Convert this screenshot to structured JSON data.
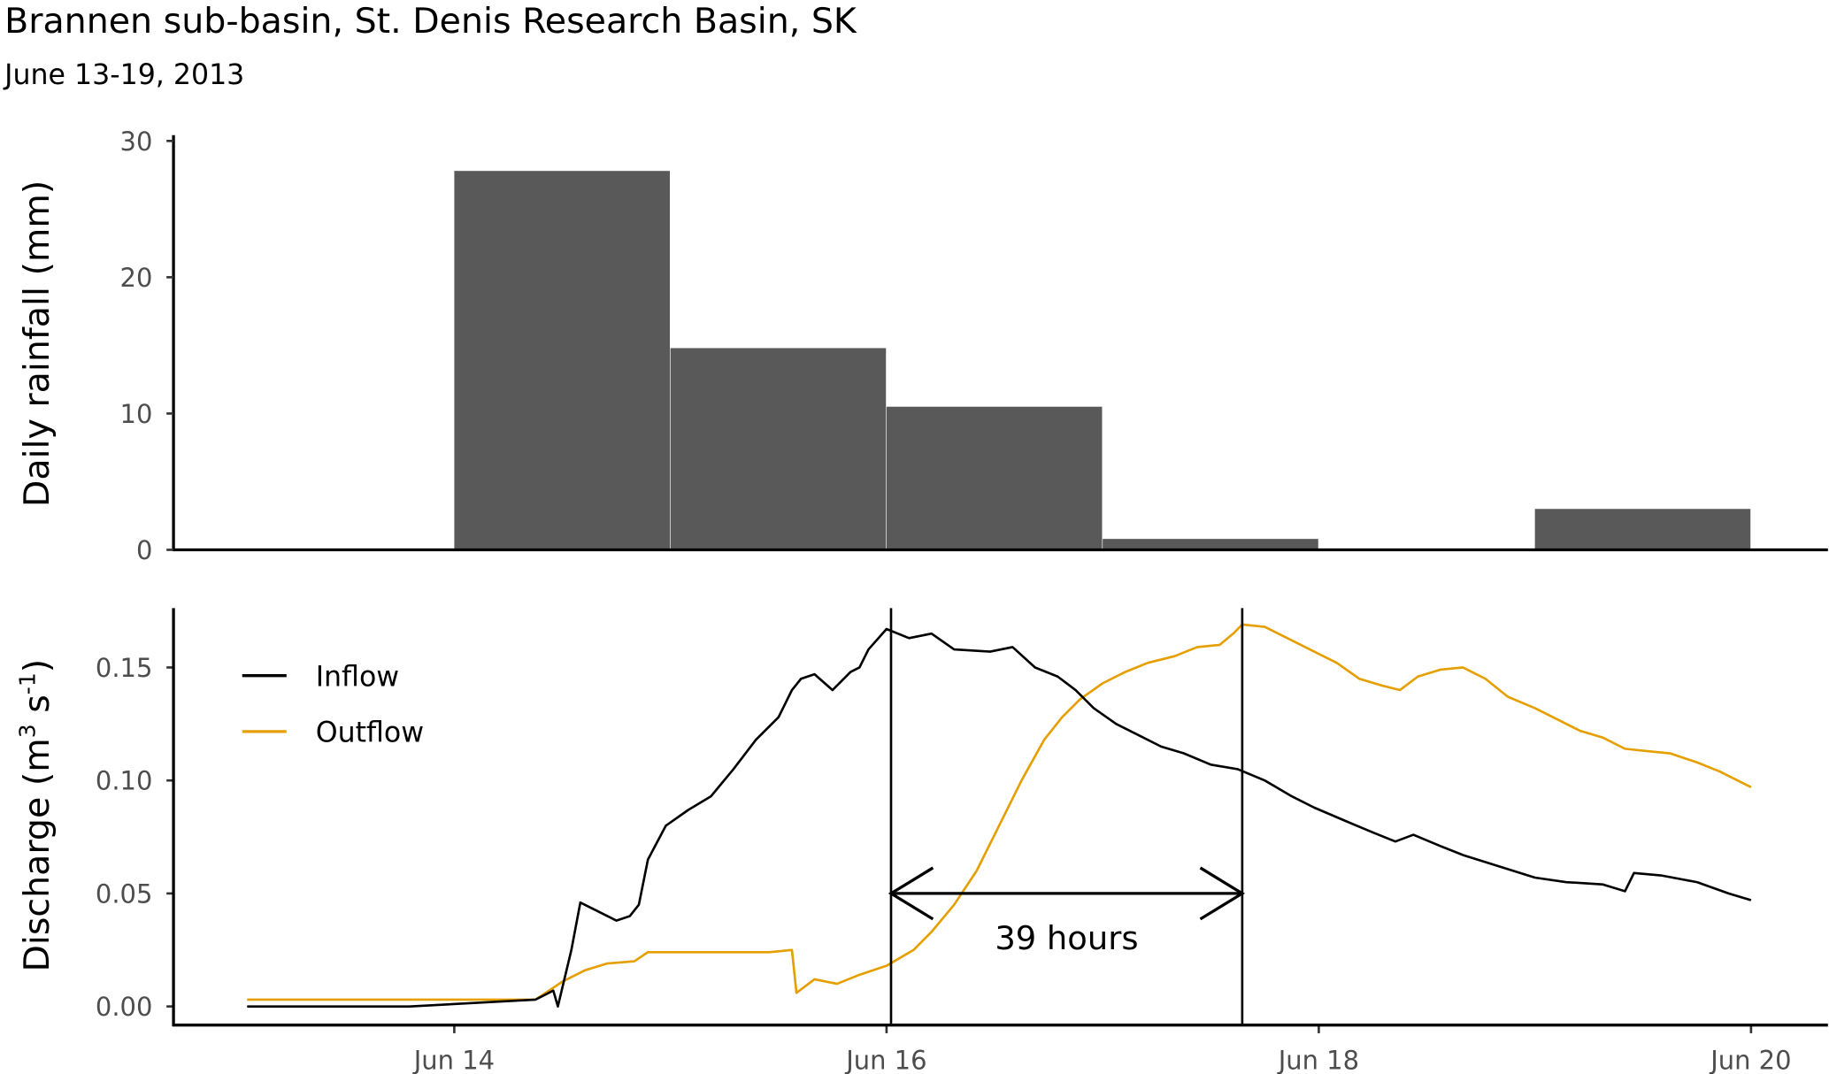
{
  "title": "Brannen sub-basin, St. Denis Research Basin, SK",
  "subtitle": "June 13-19, 2013",
  "chart_data": [
    {
      "type": "bar",
      "ylabel": "Daily rainfall (mm)",
      "ylim": [
        0,
        30
      ],
      "yticks": [
        "0",
        "10",
        "20",
        "30"
      ],
      "categories": [
        "2013-06-13",
        "2013-06-14",
        "2013-06-15",
        "2013-06-16",
        "2013-06-17",
        "2013-06-18",
        "2013-06-19"
      ],
      "values": [
        0,
        27.8,
        14.8,
        10.5,
        0.8,
        0,
        3.0
      ],
      "bar_color": "#595959",
      "grid": false
    },
    {
      "type": "line",
      "ylabel_main": "Discharge (m",
      "ylabel_sup1": "3",
      "ylabel_mid": " s",
      "ylabel_sup2": "-1",
      "ylabel_end": ")",
      "ylim": [
        -0.008,
        0.176
      ],
      "yticks": [
        "0.00",
        "0.05",
        "0.10",
        "0.15"
      ],
      "xticks": [
        "Jun 14",
        "Jun 16",
        "Jun 18",
        "Jun 20"
      ],
      "xtick_dates": [
        "2013-06-14T00:00",
        "2013-06-16T00:00",
        "2013-06-18T00:00",
        "2013-06-20T00:00"
      ],
      "grid": false,
      "legend_position": "top-left",
      "series": [
        {
          "name": "Inflow",
          "color": "#000000",
          "points": [
            [
              "2013-06-13T01:00",
              0.0
            ],
            [
              "2013-06-13T19:00",
              0.0
            ],
            [
              "2013-06-14T09:00",
              0.003
            ],
            [
              "2013-06-14T11:00",
              0.007
            ],
            [
              "2013-06-14T11:30",
              0.0
            ],
            [
              "2013-06-14T13:00",
              0.025
            ],
            [
              "2013-06-14T14:00",
              0.046
            ],
            [
              "2013-06-14T15:30",
              0.043
            ],
            [
              "2013-06-14T18:00",
              0.038
            ],
            [
              "2013-06-14T19:30",
              0.04
            ],
            [
              "2013-06-14T20:30",
              0.045
            ],
            [
              "2013-06-14T21:30",
              0.065
            ],
            [
              "2013-06-14T23:30",
              0.08
            ],
            [
              "2013-06-15T02:00",
              0.087
            ],
            [
              "2013-06-15T04:30",
              0.093
            ],
            [
              "2013-06-15T07:00",
              0.105
            ],
            [
              "2013-06-15T09:30",
              0.118
            ],
            [
              "2013-06-15T12:00",
              0.128
            ],
            [
              "2013-06-15T13:30",
              0.14
            ],
            [
              "2013-06-15T14:30",
              0.145
            ],
            [
              "2013-06-15T16:00",
              0.147
            ],
            [
              "2013-06-15T18:00",
              0.14
            ],
            [
              "2013-06-15T20:00",
              0.148
            ],
            [
              "2013-06-15T21:00",
              0.15
            ],
            [
              "2013-06-15T22:00",
              0.158
            ],
            [
              "2013-06-16T00:00",
              0.167
            ],
            [
              "2013-06-16T02:30",
              0.163
            ],
            [
              "2013-06-16T05:00",
              0.165
            ],
            [
              "2013-06-16T07:30",
              0.158
            ],
            [
              "2013-06-16T11:30",
              0.157
            ],
            [
              "2013-06-16T14:00",
              0.159
            ],
            [
              "2013-06-16T16:30",
              0.15
            ],
            [
              "2013-06-16T19:00",
              0.146
            ],
            [
              "2013-06-16T21:00",
              0.14
            ],
            [
              "2013-06-16T23:00",
              0.132
            ],
            [
              "2013-06-17T01:30",
              0.125
            ],
            [
              "2013-06-17T04:00",
              0.12
            ],
            [
              "2013-06-17T06:30",
              0.115
            ],
            [
              "2013-06-17T09:00",
              0.112
            ],
            [
              "2013-06-17T12:00",
              0.107
            ],
            [
              "2013-06-17T15:00",
              0.105
            ],
            [
              "2013-06-17T18:00",
              0.1
            ],
            [
              "2013-06-17T21:00",
              0.093
            ],
            [
              "2013-06-17T23:30",
              0.088
            ],
            [
              "2013-06-18T03:00",
              0.082
            ],
            [
              "2013-06-18T06:00",
              0.077
            ],
            [
              "2013-06-18T08:30",
              0.073
            ],
            [
              "2013-06-18T10:30",
              0.076
            ],
            [
              "2013-06-18T13:30",
              0.071
            ],
            [
              "2013-06-18T16:00",
              0.067
            ],
            [
              "2013-06-18T20:00",
              0.062
            ],
            [
              "2013-06-19T00:00",
              0.057
            ],
            [
              "2013-06-19T03:30",
              0.055
            ],
            [
              "2013-06-19T07:30",
              0.054
            ],
            [
              "2013-06-19T10:00",
              0.051
            ],
            [
              "2013-06-19T11:00",
              0.059
            ],
            [
              "2013-06-19T14:00",
              0.058
            ],
            [
              "2013-06-19T18:00",
              0.055
            ],
            [
              "2013-06-19T21:30",
              0.05
            ],
            [
              "2013-06-20T00:00",
              0.047
            ]
          ]
        },
        {
          "name": "Outflow",
          "color": "#E69F00",
          "points": [
            [
              "2013-06-13T01:00",
              0.003
            ],
            [
              "2013-06-13T19:00",
              0.003
            ],
            [
              "2013-06-14T09:00",
              0.003
            ],
            [
              "2013-06-14T12:00",
              0.011
            ],
            [
              "2013-06-14T14:30",
              0.016
            ],
            [
              "2013-06-14T17:00",
              0.019
            ],
            [
              "2013-06-14T20:00",
              0.02
            ],
            [
              "2013-06-14T21:30",
              0.024
            ],
            [
              "2013-06-15T03:00",
              0.024
            ],
            [
              "2013-06-15T11:00",
              0.024
            ],
            [
              "2013-06-15T13:30",
              0.025
            ],
            [
              "2013-06-15T14:00",
              0.006
            ],
            [
              "2013-06-15T16:00",
              0.012
            ],
            [
              "2013-06-15T18:30",
              0.01
            ],
            [
              "2013-06-15T21:00",
              0.014
            ],
            [
              "2013-06-16T00:00",
              0.018
            ],
            [
              "2013-06-16T03:00",
              0.025
            ],
            [
              "2013-06-16T05:00",
              0.033
            ],
            [
              "2013-06-16T07:30",
              0.045
            ],
            [
              "2013-06-16T10:00",
              0.06
            ],
            [
              "2013-06-16T12:30",
              0.08
            ],
            [
              "2013-06-16T15:00",
              0.1
            ],
            [
              "2013-06-16T17:30",
              0.118
            ],
            [
              "2013-06-16T19:30",
              0.128
            ],
            [
              "2013-06-16T21:30",
              0.136
            ],
            [
              "2013-06-17T00:00",
              0.143
            ],
            [
              "2013-06-17T02:30",
              0.148
            ],
            [
              "2013-06-17T05:00",
              0.152
            ],
            [
              "2013-06-17T08:00",
              0.155
            ],
            [
              "2013-06-17T10:30",
              0.159
            ],
            [
              "2013-06-17T13:00",
              0.16
            ],
            [
              "2013-06-17T14:30",
              0.165
            ],
            [
              "2013-06-17T15:30",
              0.169
            ],
            [
              "2013-06-17T18:00",
              0.168
            ],
            [
              "2013-06-17T21:00",
              0.162
            ],
            [
              "2013-06-17T23:30",
              0.157
            ],
            [
              "2013-06-18T02:00",
              0.152
            ],
            [
              "2013-06-18T04:30",
              0.145
            ],
            [
              "2013-06-18T07:00",
              0.142
            ],
            [
              "2013-06-18T09:00",
              0.14
            ],
            [
              "2013-06-18T11:00",
              0.146
            ],
            [
              "2013-06-18T13:30",
              0.149
            ],
            [
              "2013-06-18T16:00",
              0.15
            ],
            [
              "2013-06-18T18:30",
              0.145
            ],
            [
              "2013-06-18T21:00",
              0.137
            ],
            [
              "2013-06-19T00:00",
              0.132
            ],
            [
              "2013-06-19T02:30",
              0.127
            ],
            [
              "2013-06-19T05:00",
              0.122
            ],
            [
              "2013-06-19T07:30",
              0.119
            ],
            [
              "2013-06-19T10:00",
              0.114
            ],
            [
              "2013-06-19T12:30",
              0.113
            ],
            [
              "2013-06-19T15:00",
              0.112
            ],
            [
              "2013-06-19T18:00",
              0.108
            ],
            [
              "2013-06-19T20:30",
              0.104
            ],
            [
              "2013-06-20T00:00",
              0.097
            ]
          ]
        }
      ],
      "annotations": {
        "vlines": [
          "2013-06-16T00:30",
          "2013-06-17T15:30"
        ],
        "arrow_y": 0.05,
        "label": "39 hours"
      }
    }
  ]
}
